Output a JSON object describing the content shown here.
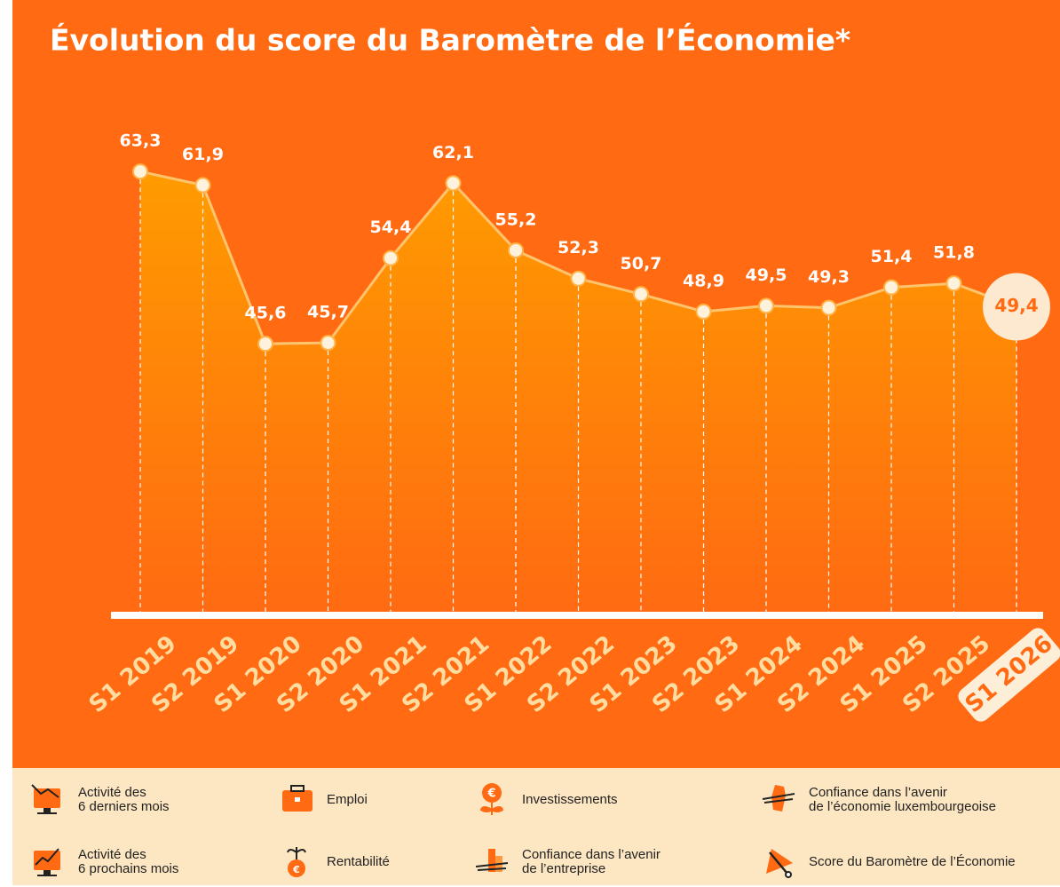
{
  "chart_data": {
    "type": "area",
    "title": "Évolution du score du Baromètre de l’Économie*",
    "categories": [
      "S1 2019",
      "S2 2019",
      "S1 2020",
      "S2 2020",
      "S1 2021",
      "S2 2021",
      "S1 2022",
      "S2 2022",
      "S1 2023",
      "S2 2023",
      "S1 2024",
      "S2 2024",
      "S1 2025",
      "S2 2025",
      "S1 2026"
    ],
    "values": [
      63.3,
      61.9,
      45.6,
      45.7,
      54.4,
      62.1,
      55.2,
      52.3,
      50.7,
      48.9,
      49.5,
      49.3,
      51.4,
      51.8,
      49.4
    ],
    "value_labels": [
      "63,3",
      "61,9",
      "45,6",
      "45,7",
      "54,4",
      "62,1",
      "55,2",
      "52,3",
      "50,7",
      "48,9",
      "49,5",
      "49,3",
      "51,4",
      "51,8",
      "49,4"
    ],
    "color": "#ffc46e",
    "ylim": [
      17.7,
      71.8
    ]
  },
  "legend_items": [
    "Activité des\n6 derniers mois",
    "Emploi",
    "Investissements",
    "Confiance dans l’avenir\nde l’économie luxembourgeoise",
    "Activité des\n6 prochains mois",
    "Rentabilité",
    "Confiance dans l’avenir\nde l’entreprise",
    "Score du Baromètre de l’Économie"
  ]
}
